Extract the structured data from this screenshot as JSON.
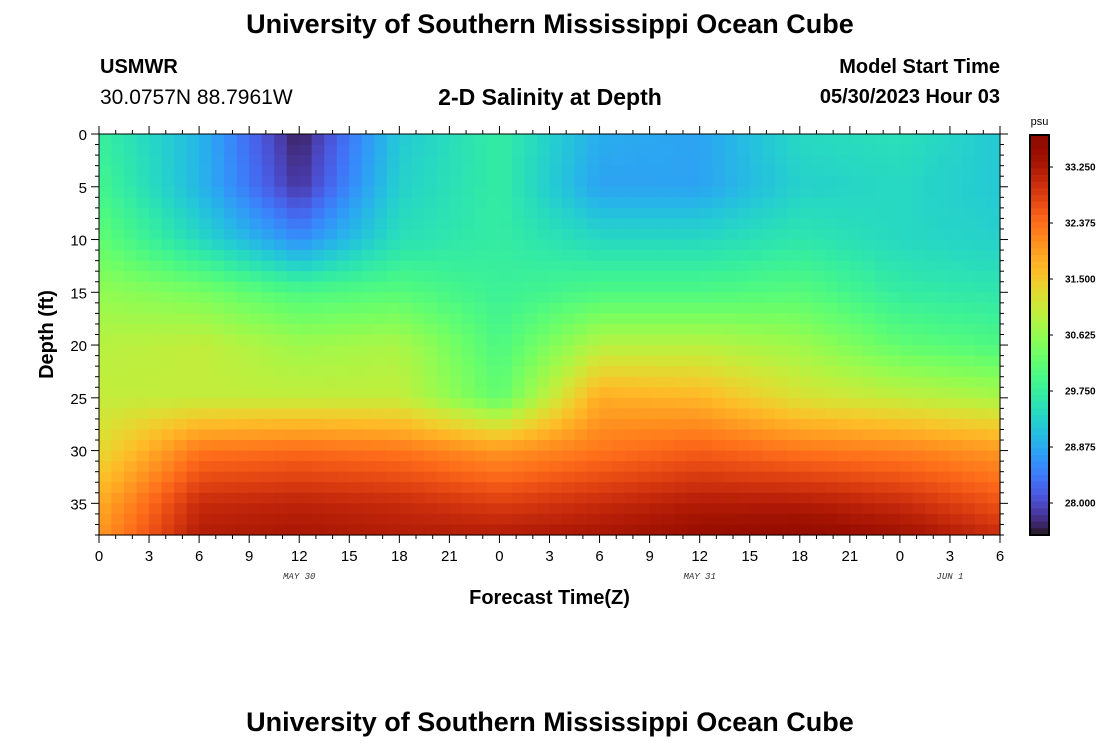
{
  "header": {
    "title": "University of Southern Mississippi Ocean Cube",
    "station": "USMWR",
    "coords": "30.0757N  88.7961W",
    "subtitle": "2-D Salinity at Depth",
    "model_label": "Model Start Time",
    "model_time": "05/30/2023 Hour 03"
  },
  "footer": {
    "title": "University of Southern Mississippi Ocean Cube"
  },
  "chart_data": {
    "type": "heatmap",
    "xlabel": "Forecast Time(Z)",
    "ylabel": "Depth (ft)",
    "x_tick_labels": [
      "0",
      "3",
      "6",
      "9",
      "12",
      "15",
      "18",
      "21",
      "0",
      "3",
      "6",
      "9",
      "12",
      "15",
      "18",
      "21",
      "0",
      "3",
      "6"
    ],
    "x_hours": [
      0,
      3,
      6,
      9,
      12,
      15,
      18,
      21,
      24,
      27,
      30,
      33,
      36,
      39,
      42,
      45,
      48,
      51,
      54
    ],
    "date_labels": [
      {
        "label": "MAY 30",
        "hour": 12
      },
      {
        "label": "MAY 31",
        "hour": 36
      },
      {
        "label": "JUN 1",
        "hour": 51
      }
    ],
    "xlim": [
      0,
      54
    ],
    "ylim": [
      0,
      38
    ],
    "y_ticks": [
      0,
      5,
      10,
      15,
      20,
      25,
      30,
      35
    ],
    "colorbar": {
      "unit": "psu",
      "ticks": [
        "33.250",
        "32.375",
        "31.500",
        "30.625",
        "29.750",
        "28.875",
        "28.000"
      ],
      "tick_values": [
        33.25,
        32.375,
        31.5,
        30.625,
        29.75,
        28.875,
        28.0
      ],
      "range": [
        27.5,
        33.75
      ],
      "colormap": "turbo"
    },
    "depths_ft": [
      0,
      5,
      10,
      15,
      20,
      25,
      30,
      35,
      38
    ],
    "times_hours": [
      0,
      6,
      12,
      18,
      24,
      30,
      36,
      42,
      48,
      54
    ],
    "salinity": [
      [
        29.75,
        29.0,
        27.6,
        29.2,
        29.7,
        28.9,
        28.8,
        29.4,
        29.5,
        29.2
      ],
      [
        29.9,
        29.0,
        27.8,
        29.3,
        29.7,
        28.8,
        28.8,
        29.3,
        29.4,
        29.2
      ],
      [
        30.2,
        29.4,
        28.6,
        29.5,
        29.7,
        29.4,
        29.4,
        29.6,
        29.4,
        29.3
      ],
      [
        30.6,
        30.4,
        30.0,
        30.1,
        29.8,
        30.0,
        30.0,
        30.1,
        29.7,
        29.6
      ],
      [
        30.9,
        31.0,
        30.7,
        30.8,
        30.0,
        30.9,
        30.9,
        30.7,
        30.2,
        30.0
      ],
      [
        31.0,
        31.0,
        31.0,
        31.0,
        30.2,
        31.8,
        31.7,
        31.2,
        31.0,
        30.8
      ],
      [
        31.3,
        32.3,
        32.4,
        32.3,
        32.0,
        32.3,
        32.5,
        32.3,
        32.2,
        32.0
      ],
      [
        31.8,
        33.0,
        33.1,
        33.0,
        32.8,
        33.0,
        33.2,
        33.2,
        33.0,
        32.6
      ],
      [
        32.0,
        33.2,
        33.3,
        33.2,
        33.2,
        33.3,
        33.5,
        33.6,
        33.4,
        33.0
      ]
    ]
  }
}
